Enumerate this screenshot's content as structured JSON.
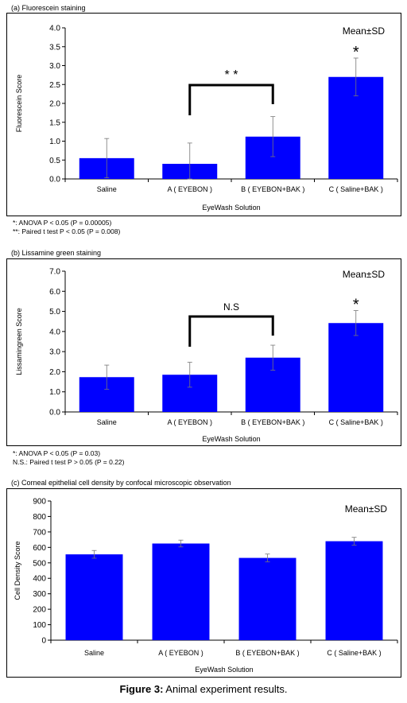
{
  "figure": {
    "caption_bold": "Figure 3:",
    "caption_text": " Animal experiment results."
  },
  "chart_data": [
    {
      "type": "bar",
      "title": "(a) Fluorescein staining",
      "xlabel": "EyeWash Solution",
      "ylabel": "Fluorescein Score",
      "legend_note": "Mean±SD",
      "categories": [
        "Saline",
        "A ( EYEBON )",
        "B ( EYEBON+BAK )",
        "C ( Saline+BAK )"
      ],
      "values": [
        0.55,
        0.4,
        1.12,
        2.7
      ],
      "errors": [
        0.52,
        0.55,
        0.53,
        0.5
      ],
      "ylim": [
        0,
        4.0
      ],
      "yticks": [
        "0.0",
        "0.5",
        "1.0",
        "1.5",
        "2.0",
        "2.5",
        "3.0",
        "3.5",
        "4.0"
      ],
      "bar_color": "#0000ff",
      "significance": {
        "bracket": [
          1,
          2
        ],
        "bracket_label": "* *",
        "star_on": 3,
        "star_label": "*"
      },
      "notes": [
        "*: ANOVA P < 0.05 (P = 0.00005)",
        "**: Paired t test P < 0.05 (P = 0.008)"
      ]
    },
    {
      "type": "bar",
      "title": "(b) Lissamine green staining",
      "xlabel": "EyeWash Solution",
      "ylabel": "Lissamingreen Score",
      "legend_note": "Mean±SD",
      "categories": [
        "Saline",
        "A ( EYEBON )",
        "B ( EYEBON+BAK )",
        "C ( Saline+BAK )"
      ],
      "values": [
        1.73,
        1.85,
        2.7,
        4.42
      ],
      "errors": [
        0.6,
        0.62,
        0.62,
        0.62
      ],
      "ylim": [
        0,
        7.0
      ],
      "yticks": [
        "0.0",
        "1.0",
        "2.0",
        "3.0",
        "4.0",
        "5.0",
        "6.0",
        "7.0"
      ],
      "bar_color": "#0000ff",
      "significance": {
        "bracket": [
          1,
          2
        ],
        "bracket_label": "N.S",
        "star_on": 3,
        "star_label": "*"
      },
      "notes": [
        "*: ANOVA P < 0.05 (P = 0.03)",
        "N.S.: Paired t test P > 0.05 (P = 0.22)"
      ]
    },
    {
      "type": "bar",
      "title": "(c) Corneal epithelial cell density by confocal microscopic observation",
      "xlabel": "EyeWash Solution",
      "ylabel": "Cell Density Score",
      "legend_note": "Mean±SD",
      "categories": [
        "Saline",
        "A ( EYEBON )",
        "B ( EYEBON+BAK )",
        "C ( Saline+BAK )"
      ],
      "values": [
        555,
        625,
        532,
        640
      ],
      "errors": [
        25,
        22,
        25,
        25
      ],
      "ylim": [
        0,
        900
      ],
      "yticks": [
        "0",
        "100",
        "200",
        "300",
        "400",
        "500",
        "600",
        "700",
        "800",
        "900"
      ],
      "bar_color": "#0000ff",
      "significance": null,
      "notes": []
    }
  ]
}
